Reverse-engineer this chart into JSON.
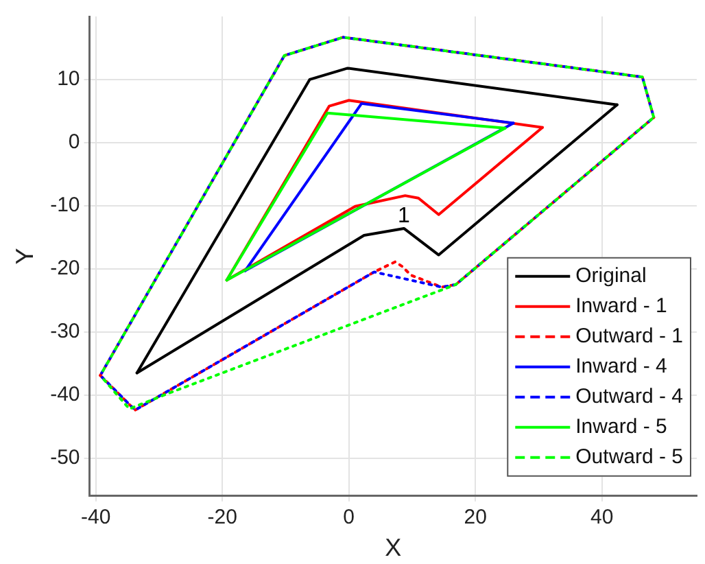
{
  "chart_data": {
    "type": "line",
    "xlabel": "X",
    "ylabel": "Y",
    "xlim": [
      -41,
      55
    ],
    "ylim": [
      -56,
      20
    ],
    "xticks": [
      -40,
      -20,
      0,
      20,
      40
    ],
    "yticks": [
      -50,
      -40,
      -30,
      -20,
      -10,
      0,
      10
    ],
    "grid": true,
    "legend": "bottom right",
    "marker": "none",
    "annotations": [
      {
        "text": "1",
        "x": 8.7,
        "y": -13.6
      }
    ],
    "series": [
      {
        "name": "Original",
        "color": "#000000",
        "line_style": "solid",
        "x": [
          -33.5,
          -6.2,
          -0.2,
          42.4
        ],
        "values": [
          -36.5,
          10,
          11.8,
          6
        ]
      },
      {
        "color": "#000000",
        "line_style": "solid",
        "x": [
          -33.5,
          2.4,
          8.7,
          14.2,
          42.4
        ],
        "values": [
          -36.5,
          -14.7,
          -13.6,
          -17.8,
          6
        ]
      },
      {
        "name": "Inward - 1",
        "color": "#ff0000",
        "line_style": "solid",
        "x": [
          -19.3,
          -3.1,
          0,
          30.6
        ],
        "values": [
          -21.8,
          5.8,
          6.7,
          2.4
        ]
      },
      {
        "color": "#ff0000",
        "line_style": "solid",
        "x": [
          -19.3,
          1,
          8.9,
          11,
          14.2,
          30.6
        ],
        "values": [
          -21.8,
          -10.1,
          -8.4,
          -8.8,
          -11.4,
          2.4
        ]
      },
      {
        "name": "Outward - 1",
        "color": "#ff0000",
        "line_style": "dashed",
        "x": [
          -39.3,
          -10.2,
          -0.9,
          46.4,
          48.2
        ],
        "values": [
          -36.9,
          13.8,
          16.7,
          10.4,
          4
        ]
      },
      {
        "color": "#ff0000",
        "line_style": "dashed",
        "x": [
          -39.3,
          -33.8,
          4,
          7.3,
          8.4,
          9.8,
          14.7,
          16.9,
          48.2
        ],
        "values": [
          -36.9,
          -42.4,
          -20.5,
          -18.9,
          -19.6,
          -21,
          -22.9,
          -22.5,
          4
        ]
      },
      {
        "name": "Inward - 4",
        "color": "#0000ff",
        "line_style": "solid",
        "x": [
          -16.4,
          2,
          26
        ],
        "values": [
          -20.3,
          6.2,
          3.1
        ]
      },
      {
        "color": "#0000ff",
        "line_style": "solid",
        "x": [
          -16.4,
          26
        ],
        "values": [
          -20.3,
          3.1
        ]
      },
      {
        "name": "Outward - 4",
        "color": "#0000ff",
        "line_style": "dashed",
        "x": [
          -39.3,
          -10.2,
          -0.9,
          46.4,
          48.2
        ],
        "values": [
          -36.9,
          13.8,
          16.7,
          10.4,
          4
        ]
      },
      {
        "color": "#0000ff",
        "line_style": "dashed",
        "x": [
          -39.3,
          -33.8,
          4,
          14.7,
          16.9,
          48.2
        ],
        "values": [
          -36.9,
          -42.4,
          -20.5,
          -22.9,
          -22.5,
          4
        ]
      },
      {
        "name": "Inward - 5",
        "color": "#00ff00",
        "line_style": "solid",
        "x": [
          -19.3,
          -3.4,
          24.7
        ],
        "values": [
          -21.8,
          4.7,
          2.3
        ]
      },
      {
        "color": "#00ff00",
        "line_style": "solid",
        "x": [
          -19.3,
          24.7
        ],
        "values": [
          -21.8,
          2.3
        ]
      },
      {
        "name": "Outward - 5",
        "color": "#00ff00",
        "line_style": "dashed",
        "x": [
          -39.3,
          -10.2,
          -0.9,
          46.4,
          48.2
        ],
        "values": [
          -36.9,
          13.8,
          16.7,
          10.4,
          4
        ]
      },
      {
        "color": "#00ff00",
        "line_style": "dashed",
        "x": [
          -39.3,
          -34.7,
          -28.7,
          16.9,
          48.2
        ],
        "values": [
          -36.9,
          -42.2,
          -39.8,
          -22.5,
          4
        ]
      }
    ]
  }
}
